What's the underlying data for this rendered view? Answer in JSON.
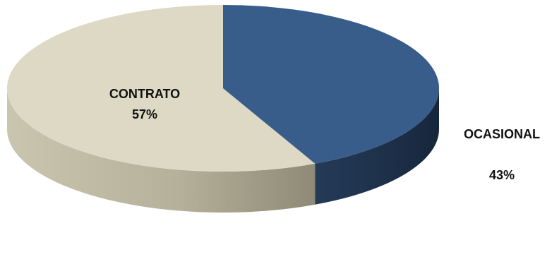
{
  "chart_data": {
    "type": "pie",
    "style": "3d",
    "title": "",
    "slices": [
      {
        "label": "CONTRATO",
        "value": 57,
        "value_label": "57%",
        "color": "#ddd9c4"
      },
      {
        "label": "OCASIONAL",
        "value": 43,
        "value_label": "43%",
        "color": "#385d8a"
      }
    ]
  }
}
